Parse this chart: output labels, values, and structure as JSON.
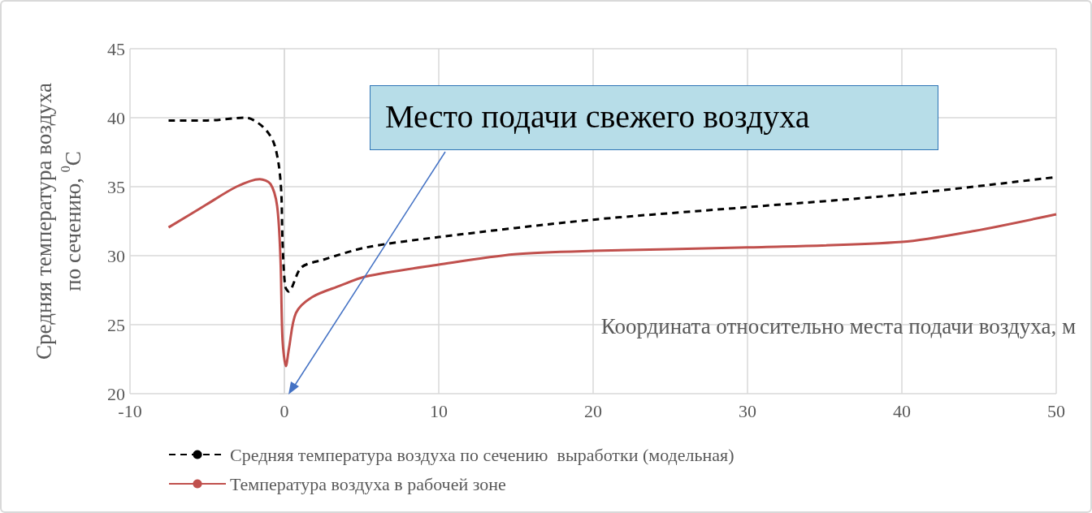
{
  "chart_data": {
    "type": "line",
    "xlabel": "Координата относительно места подачи воздуха, м",
    "ylabel": "Средняя температура воздуха по сечению, $^{0}$C",
    "xlim": [
      -10,
      50
    ],
    "xticks": [
      -10,
      0,
      10,
      20,
      30,
      40,
      50
    ],
    "ylim": [
      20,
      45
    ],
    "yticks": [
      20,
      25,
      30,
      35,
      40,
      45
    ],
    "grid": true,
    "legend": "bottom",
    "marker": "none",
    "annotations": [
      "Место подачи свежего воздуха"
    ],
    "series": [
      {
        "name": "Средняя температура воздуха по сечению  выработки (модельная)",
        "color": "#000000",
        "line_style": "dashed",
        "x": [
          -7.5,
          -5,
          -2.5,
          -1.4,
          -0.73,
          -0.38,
          -0.2,
          -0.12,
          0.05,
          0.27,
          1.1,
          2.5,
          5.3,
          10,
          19.9,
          29.8,
          39.7,
          50
        ],
        "values": [
          39.8,
          39.8,
          40,
          39.35,
          38.3,
          36.7,
          34.6,
          31.1,
          27.8,
          27.4,
          29.15,
          29.7,
          30.6,
          31.35,
          32.6,
          33.5,
          34.4,
          35.7
        ]
      },
      {
        "name": "Температура воздуха в рабочей зоне",
        "color": "#c0504d",
        "line_style": "solid",
        "x": [
          -7.5,
          -5.2,
          -3.1,
          -1.6,
          -0.9,
          -0.47,
          -0.25,
          -0.12,
          0.1,
          0.3,
          0.75,
          1.8,
          3.55,
          5.3,
          10,
          14.9,
          20,
          30,
          40,
          44.7,
          50
        ],
        "values": [
          32.05,
          33.6,
          35,
          35.55,
          35.2,
          33.6,
          29.7,
          23.9,
          22,
          23.3,
          25.85,
          27,
          27.8,
          28.5,
          29.35,
          30.1,
          30.35,
          30.6,
          31,
          31.8,
          33
        ]
      }
    ]
  }
}
